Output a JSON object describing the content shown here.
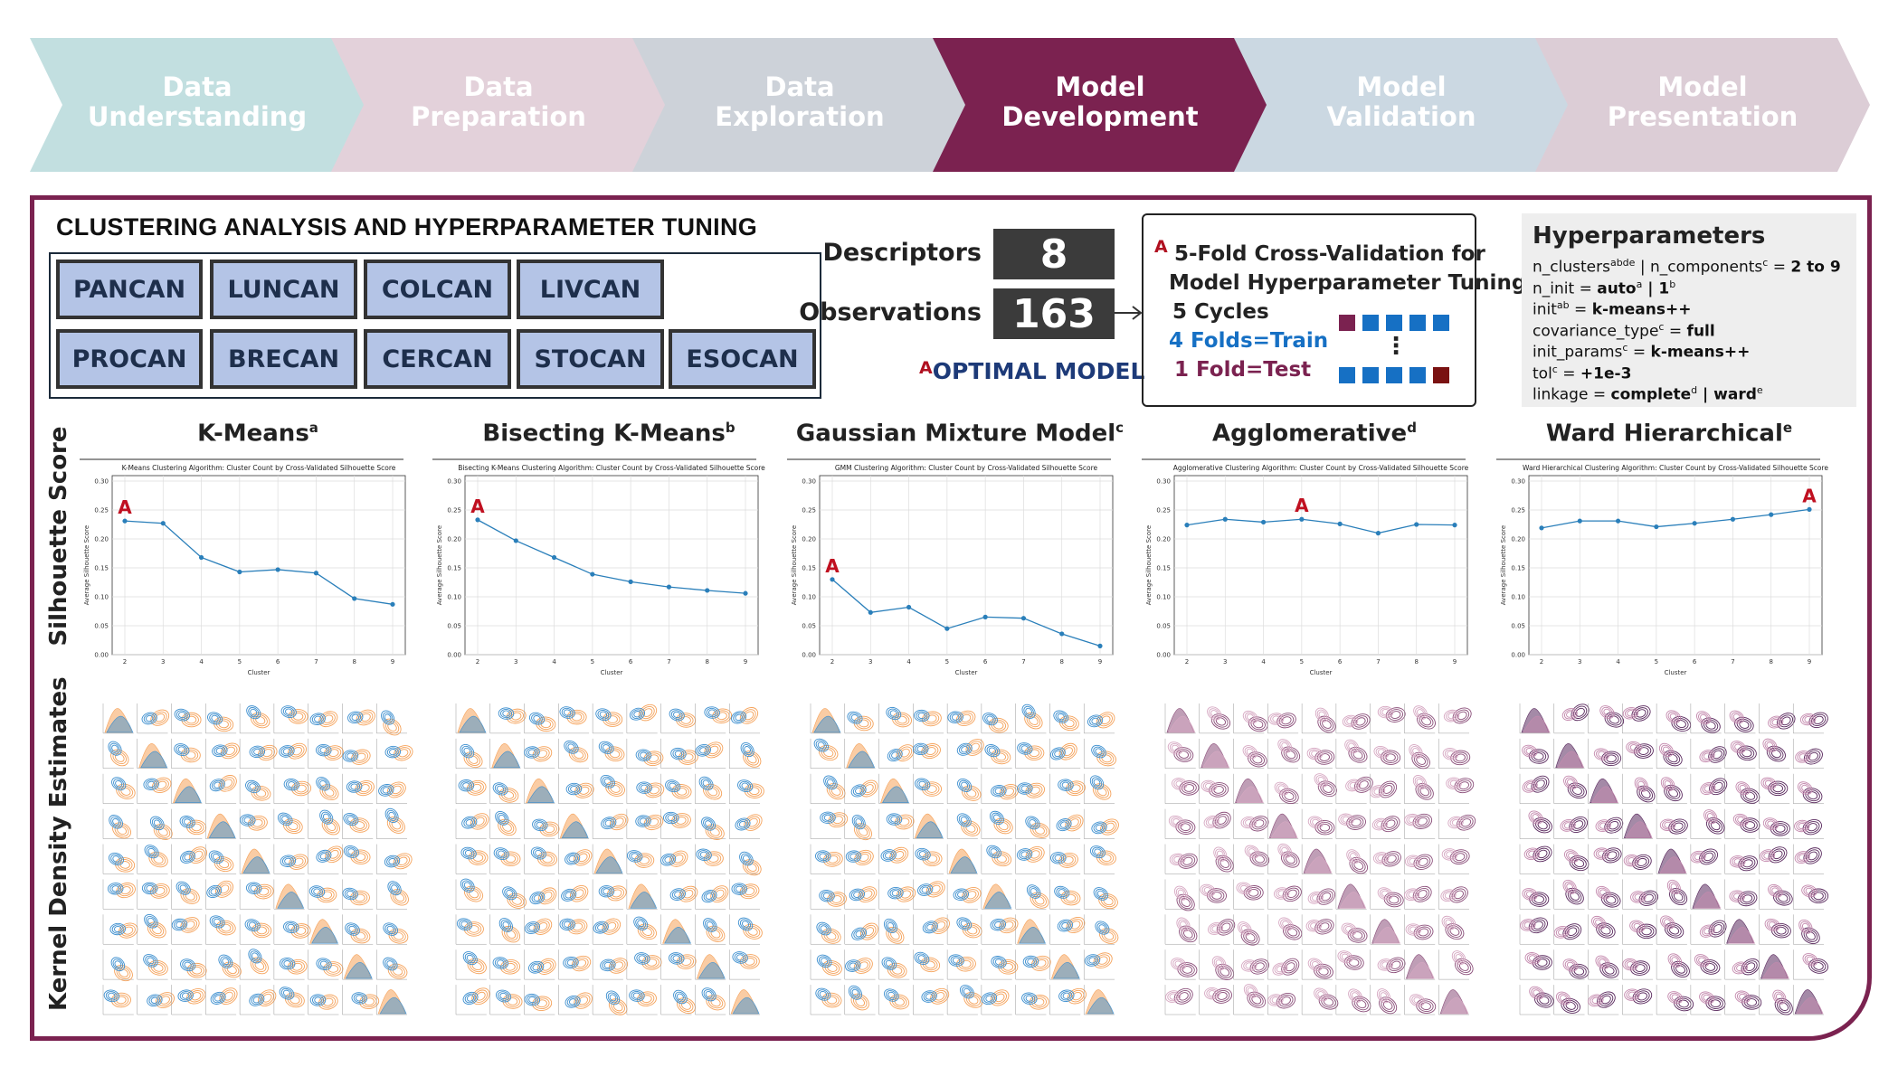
{
  "pipeline": {
    "steps": [
      {
        "line1": "Data",
        "line2": "Understanding",
        "color": "#c2dfe0",
        "active": false
      },
      {
        "line1": "Data",
        "line2": "Preparation",
        "color": "#e3d1da",
        "active": false
      },
      {
        "line1": "Data",
        "line2": "Exploration",
        "color": "#cdd2d9",
        "active": false
      },
      {
        "line1": "Model",
        "line2": "Development",
        "color": "#7b2250",
        "active": true
      },
      {
        "line1": "Model",
        "line2": "Validation",
        "color": "#cbd8e2",
        "active": false
      },
      {
        "line1": "Model",
        "line2": "Presentation",
        "color": "#dccdd6",
        "active": false
      }
    ]
  },
  "section": {
    "title": "CLUSTERING ANALYSIS AND HYPERPARAMETER TUNING"
  },
  "cancers": {
    "row1": [
      "PANCAN",
      "LUNCAN",
      "COLCAN",
      "LIVCAN"
    ],
    "row2": [
      "PROCAN",
      "BRECAN",
      "CERCAN",
      "STOCAN",
      "ESOCAN"
    ]
  },
  "stats": {
    "descriptors_label": "Descriptors",
    "descriptors_value": "8",
    "observations_label": "Observations",
    "observations_value": "163"
  },
  "optimal": {
    "marker": "A",
    "label": "OPTIMAL MODEL"
  },
  "cv": {
    "marker": "A",
    "title1": "5-Fold Cross-Validation for",
    "title2": "Model Hyperparameter Tuning",
    "cycles": "5 Cycles",
    "train": "4 Folds=Train",
    "test": "1 Fold=Test",
    "ellipsis": "⋮",
    "colors": {
      "train": "#1670c4",
      "test": "#7a1212",
      "accent": "#7b2250"
    }
  },
  "hyperparameters": {
    "title": "Hyperparameters",
    "lines": [
      {
        "k": "n_clusters",
        "ks": "abde",
        "sep": " | ",
        "k2": "n_components",
        "k2s": "c",
        "eq": " = ",
        "v": "2 to 9",
        "vs": "",
        "v2": "",
        "v2s": ""
      },
      {
        "k": "n_init",
        "ks": "",
        "sep": "",
        "k2": "",
        "k2s": "",
        "eq": " = ",
        "v": "auto",
        "vs": "a",
        "v2": " | 1",
        "v2s": "b"
      },
      {
        "k": "init",
        "ks": "ab",
        "sep": "",
        "k2": "",
        "k2s": "",
        "eq": " = ",
        "v": "k-means++",
        "vs": "",
        "v2": "",
        "v2s": ""
      },
      {
        "k": "covariance_type",
        "ks": "c",
        "sep": "",
        "k2": "",
        "k2s": "",
        "eq": " = ",
        "v": "full",
        "vs": "",
        "v2": "",
        "v2s": ""
      },
      {
        "k": "init_params",
        "ks": "c",
        "sep": "",
        "k2": "",
        "k2s": "",
        "eq": " = ",
        "v": "k-means++",
        "vs": "",
        "v2": "",
        "v2s": ""
      },
      {
        "k": "tol",
        "ks": "c",
        "sep": "",
        "k2": "",
        "k2s": "",
        "eq": " = ",
        "v": "+1e-3",
        "vs": "",
        "v2": "",
        "v2s": ""
      },
      {
        "k": "linkage",
        "ks": "",
        "sep": "",
        "k2": "",
        "k2s": "",
        "eq": " = ",
        "v": "complete",
        "vs": "d",
        "v2": " | ward",
        "v2s": "e"
      }
    ]
  },
  "row_labels": {
    "silhouette": "Silhouette Score",
    "kde": "Kernel Density Estimates"
  },
  "algorithms": [
    {
      "name": "K-Means",
      "sup": "a"
    },
    {
      "name": "Bisecting K-Means",
      "sup": "b"
    },
    {
      "name": "Gaussian Mixture Model",
      "sup": "c"
    },
    {
      "name": "Agglomerative",
      "sup": "d"
    },
    {
      "name": "Ward Hierarchical",
      "sup": "e"
    }
  ],
  "chart_data": [
    {
      "type": "line",
      "title": "K-Means Clustering Algorithm: Cluster Count by Cross-Validated Silhouette Score",
      "xlabel": "Cluster",
      "ylabel": "Average Silhouette Score",
      "x": [
        2,
        3,
        4,
        5,
        6,
        7,
        8,
        9
      ],
      "values": [
        0.231,
        0.227,
        0.168,
        0.143,
        0.147,
        0.141,
        0.097,
        0.087
      ],
      "ylim": [
        0,
        0.3
      ],
      "yticks": [
        "0.00",
        "0.05",
        "0.10",
        "0.15",
        "0.20",
        "0.25",
        "0.30"
      ],
      "optimal_index": 0,
      "marker": "A"
    },
    {
      "type": "line",
      "title": "Bisecting K-Means Clustering Algorithm: Cluster Count by Cross-Validated Silhouette Score",
      "xlabel": "Cluster",
      "ylabel": "Average Silhouette Score",
      "x": [
        2,
        3,
        4,
        5,
        6,
        7,
        8,
        9
      ],
      "values": [
        0.233,
        0.197,
        0.168,
        0.139,
        0.126,
        0.117,
        0.111,
        0.106
      ],
      "ylim": [
        0,
        0.3
      ],
      "yticks": [
        "0.00",
        "0.05",
        "0.10",
        "0.15",
        "0.20",
        "0.25",
        "0.30"
      ],
      "optimal_index": 0,
      "marker": "A"
    },
    {
      "type": "line",
      "title": "GMM Clustering Algorithm: Cluster Count by Cross-Validated Silhouette Score",
      "xlabel": "Cluster",
      "ylabel": "Average Silhouette Score",
      "x": [
        2,
        3,
        4,
        5,
        6,
        7,
        8,
        9
      ],
      "values": [
        0.13,
        0.073,
        0.082,
        0.045,
        0.065,
        0.063,
        0.036,
        0.015
      ],
      "ylim": [
        0,
        0.3
      ],
      "yticks": [
        "0.00",
        "0.05",
        "0.10",
        "0.15",
        "0.20",
        "0.25",
        "0.30"
      ],
      "optimal_index": 0,
      "marker": "A"
    },
    {
      "type": "line",
      "title": "Agglomerative Clustering Algorithm: Cluster Count by Cross-Validated Silhouette Score",
      "xlabel": "Cluster",
      "ylabel": "Average Silhouette Score",
      "x": [
        2,
        3,
        4,
        5,
        6,
        7,
        8,
        9
      ],
      "values": [
        0.224,
        0.234,
        0.229,
        0.234,
        0.226,
        0.21,
        0.225,
        0.224
      ],
      "ylim": [
        0,
        0.3
      ],
      "yticks": [
        "0.00",
        "0.05",
        "0.10",
        "0.15",
        "0.20",
        "0.25",
        "0.30"
      ],
      "optimal_index": 3,
      "marker": "A"
    },
    {
      "type": "line",
      "title": "Ward Hierarchical Clustering Algorithm: Cluster Count by Cross-Validated Silhouette Score",
      "xlabel": "Cluster",
      "ylabel": "Average Silhouette Score",
      "x": [
        2,
        3,
        4,
        5,
        6,
        7,
        8,
        9
      ],
      "values": [
        0.219,
        0.231,
        0.231,
        0.221,
        0.227,
        0.234,
        0.242,
        0.251
      ],
      "ylim": [
        0,
        0.3
      ],
      "yticks": [
        "0.00",
        "0.05",
        "0.10",
        "0.15",
        "0.20",
        "0.25",
        "0.30"
      ],
      "optimal_index": 7,
      "marker": "A"
    }
  ],
  "kde_palettes": [
    {
      "a": "#f5a25a",
      "b": "#3d8fcf"
    },
    {
      "a": "#f5a25a",
      "b": "#3d8fcf"
    },
    {
      "a": "#f5a25a",
      "b": "#3d8fcf"
    },
    {
      "a": "#8b4f7a",
      "b": "#d6a8c2"
    },
    {
      "a": "#5a2a5e",
      "b": "#c48aae"
    }
  ],
  "colors": {
    "frame": "#7b2250",
    "line": "#2a7fba",
    "marker": "#c01020"
  }
}
